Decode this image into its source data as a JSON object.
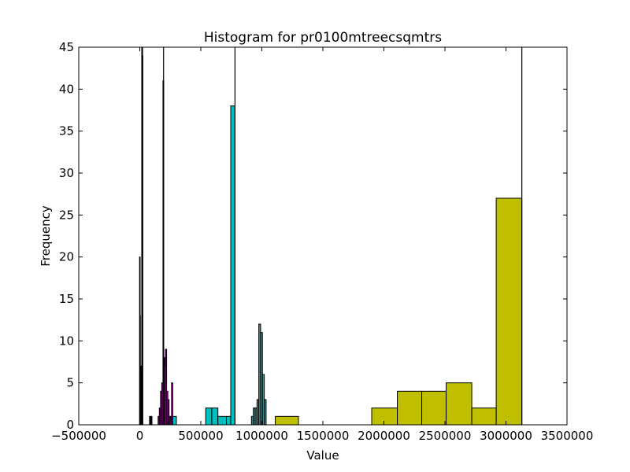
{
  "chart_data": {
    "type": "bar",
    "title": "Histogram for pr0100mtreecsqmtrs",
    "xlabel": "Value",
    "ylabel": "Frequency",
    "xlim": [
      -500000,
      3500000
    ],
    "ylim": [
      0,
      45
    ],
    "xticks": [
      -500000,
      0,
      500000,
      1000000,
      1500000,
      2000000,
      2500000,
      3000000,
      3500000
    ],
    "xtick_labels": [
      "−500000",
      "0",
      "500000",
      "1000000",
      "1500000",
      "2000000",
      "2500000",
      "3000000",
      "3500000"
    ],
    "yticks": [
      0,
      5,
      10,
      15,
      20,
      25,
      30,
      35,
      40,
      45
    ],
    "ytick_labels": [
      "0",
      "5",
      "10",
      "15",
      "20",
      "25",
      "30",
      "35",
      "40",
      "45"
    ],
    "grid": false,
    "series": [
      {
        "color": "#000000",
        "bins": [
          {
            "x0": -2000,
            "x1": 0,
            "count": 20
          },
          {
            "x0": 0,
            "x1": 2000,
            "count": 13
          },
          {
            "x0": 2000,
            "x1": 4000,
            "count": 5
          },
          {
            "x0": 4000,
            "x1": 6000,
            "count": 2
          },
          {
            "x0": 6000,
            "x1": 8000,
            "count": 7
          },
          {
            "x0": 8000,
            "x1": 10000,
            "count": 3
          },
          {
            "x0": 10000,
            "x1": 12000,
            "count": 2
          },
          {
            "x0": 16000,
            "x1": 18000,
            "count": 45
          },
          {
            "x0": 18000,
            "x1": 20000,
            "count": 45
          },
          {
            "x0": 20000,
            "x1": 22000,
            "count": 44
          },
          {
            "x0": 80000,
            "x1": 100000,
            "count": 1
          },
          {
            "x0": 170000,
            "x1": 180000,
            "count": 1
          }
        ]
      },
      {
        "color": "#00bf00",
        "bins": [
          {
            "x0": 178000,
            "x1": 184000,
            "count": 1
          },
          {
            "x0": 184000,
            "x1": 190000,
            "count": 2
          },
          {
            "x0": 190000,
            "x1": 196000,
            "count": 41
          },
          {
            "x0": 196000,
            "x1": 202000,
            "count": 3
          },
          {
            "x0": 202000,
            "x1": 208000,
            "count": 8
          },
          {
            "x0": 208000,
            "x1": 214000,
            "count": 5
          }
        ]
      },
      {
        "color": "#bf00bf",
        "bins": [
          {
            "x0": 150000,
            "x1": 160000,
            "count": 1
          },
          {
            "x0": 160000,
            "x1": 170000,
            "count": 2
          },
          {
            "x0": 170000,
            "x1": 180000,
            "count": 4
          },
          {
            "x0": 180000,
            "x1": 190000,
            "count": 5
          },
          {
            "x0": 190000,
            "x1": 200000,
            "count": 4
          },
          {
            "x0": 200000,
            "x1": 210000,
            "count": 7
          },
          {
            "x0": 210000,
            "x1": 220000,
            "count": 9
          },
          {
            "x0": 220000,
            "x1": 230000,
            "count": 4
          },
          {
            "x0": 230000,
            "x1": 240000,
            "count": 3
          },
          {
            "x0": 240000,
            "x1": 250000,
            "count": 1
          },
          {
            "x0": 250000,
            "x1": 260000,
            "count": 1
          },
          {
            "x0": 260000,
            "x1": 270000,
            "count": 5
          }
        ]
      },
      {
        "color": "#00bfbf",
        "bins": [
          {
            "x0": 270000,
            "x1": 300000,
            "count": 1
          },
          {
            "x0": 540000,
            "x1": 590000,
            "count": 2
          },
          {
            "x0": 590000,
            "x1": 640000,
            "count": 2
          },
          {
            "x0": 640000,
            "x1": 710000,
            "count": 1
          },
          {
            "x0": 710000,
            "x1": 745000,
            "count": 1
          },
          {
            "x0": 745000,
            "x1": 780000,
            "count": 38
          }
        ]
      },
      {
        "color": "#4a8a8a",
        "bins": [
          {
            "x0": 915000,
            "x1": 930000,
            "count": 1
          },
          {
            "x0": 930000,
            "x1": 945000,
            "count": 2
          },
          {
            "x0": 945000,
            "x1": 960000,
            "count": 2
          },
          {
            "x0": 960000,
            "x1": 975000,
            "count": 3
          },
          {
            "x0": 975000,
            "x1": 990000,
            "count": 12
          },
          {
            "x0": 990000,
            "x1": 1005000,
            "count": 11
          },
          {
            "x0": 1005000,
            "x1": 1020000,
            "count": 6
          },
          {
            "x0": 1020000,
            "x1": 1035000,
            "count": 3
          }
        ]
      },
      {
        "color": "#bfbf00",
        "bins": [
          {
            "x0": 1110000,
            "x1": 1300000,
            "count": 1
          },
          {
            "x0": 1300000,
            "x1": 1490000,
            "count": 0
          },
          {
            "x0": 1490000,
            "x1": 1680000,
            "count": 0
          },
          {
            "x0": 1680000,
            "x1": 1900000,
            "count": 0
          },
          {
            "x0": 1900000,
            "x1": 2110000,
            "count": 2
          },
          {
            "x0": 2110000,
            "x1": 2310000,
            "count": 4
          },
          {
            "x0": 2310000,
            "x1": 2510000,
            "count": 4
          },
          {
            "x0": 2510000,
            "x1": 2720000,
            "count": 5
          },
          {
            "x0": 2720000,
            "x1": 2920000,
            "count": 2
          },
          {
            "x0": 2920000,
            "x1": 3130000,
            "count": 27
          }
        ]
      }
    ],
    "vlines": [
      {
        "x": 21000,
        "color": "#000000"
      },
      {
        "x": 195000,
        "color": "#000000"
      },
      {
        "x": 780000,
        "color": "#000000"
      },
      {
        "x": 3130000,
        "color": "#000000"
      }
    ]
  }
}
